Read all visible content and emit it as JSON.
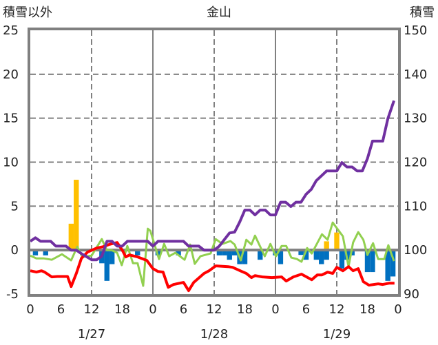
{
  "chart_data": {
    "type": "bar+line",
    "title": "金山",
    "ylabel_left": "積雪以外",
    "ylabel_right": "積雪",
    "ylim_left": [
      -5,
      25
    ],
    "ylim_right": [
      90,
      150
    ],
    "yticks_left": [
      "25",
      "20",
      "15",
      "10",
      "5",
      "0",
      "-5"
    ],
    "yticks_right": [
      "150",
      "140",
      "130",
      "120",
      "110",
      "100",
      "90"
    ],
    "xlim_hours": [
      0,
      72
    ],
    "xtick_labels": [
      "0",
      "6",
      "12",
      "18",
      "0",
      "6",
      "12",
      "18",
      "0",
      "6",
      "12",
      "18",
      "0"
    ],
    "date_labels": [
      "1/27",
      "1/28",
      "1/29"
    ],
    "grid": "dashed horizontal at 5,10,15,20; dashed vertical at 12h; solid at day boundaries",
    "colors": {
      "purple": "#7030A0",
      "red": "#FF0000",
      "green": "#92D050",
      "blue": "#0070C0",
      "yellow": "#FFC000",
      "axis": "#808080"
    },
    "series": [
      {
        "name": "snow_depth",
        "axis": "right",
        "kind": "line",
        "color": "#7030A0",
        "points": [
          [
            0,
            102
          ],
          [
            1,
            102.8
          ],
          [
            2,
            102
          ],
          [
            4,
            102
          ],
          [
            5,
            100.9
          ],
          [
            7,
            100.9
          ],
          [
            8,
            100
          ],
          [
            9,
            100
          ],
          [
            10,
            99.2
          ],
          [
            12,
            97.8
          ],
          [
            13,
            97.8
          ],
          [
            14,
            98.6
          ],
          [
            15,
            102
          ],
          [
            16,
            102
          ],
          [
            17,
            100.9
          ],
          [
            18,
            100.9
          ],
          [
            19,
            102
          ],
          [
            23,
            102
          ],
          [
            24,
            100.9
          ],
          [
            25,
            102
          ],
          [
            30,
            102
          ],
          [
            31,
            100.9
          ],
          [
            33,
            100.9
          ],
          [
            34,
            100
          ],
          [
            36,
            100
          ],
          [
            37,
            100.9
          ],
          [
            39,
            103.9
          ],
          [
            40,
            104.1
          ],
          [
            41,
            106.4
          ],
          [
            42,
            109.1
          ],
          [
            43,
            109.1
          ],
          [
            44,
            108
          ],
          [
            45,
            109.1
          ],
          [
            46,
            109.1
          ],
          [
            47,
            108
          ],
          [
            48,
            108
          ],
          [
            49,
            110.9
          ],
          [
            50,
            110.9
          ],
          [
            51,
            109.9
          ],
          [
            52,
            110.9
          ],
          [
            53,
            110.9
          ],
          [
            54,
            112.7
          ],
          [
            55,
            113.8
          ],
          [
            56,
            115.8
          ],
          [
            57,
            116.9
          ],
          [
            58,
            118
          ],
          [
            60,
            118
          ],
          [
            61,
            119.9
          ],
          [
            62,
            118.9
          ],
          [
            63,
            118.9
          ],
          [
            64,
            118
          ],
          [
            65,
            118
          ],
          [
            66,
            120.8
          ],
          [
            67,
            124.8
          ],
          [
            69,
            124.8
          ],
          [
            70,
            129.9
          ],
          [
            71.2,
            134
          ]
        ]
      },
      {
        "name": "red_series",
        "axis": "left",
        "kind": "line",
        "color": "#FF0000",
        "points": [
          [
            0,
            -2.35
          ],
          [
            1.2,
            -2.5
          ],
          [
            2.2,
            -2.35
          ],
          [
            2.8,
            -2.5
          ],
          [
            4.2,
            -3.05
          ],
          [
            5.3,
            -3.0
          ],
          [
            7.3,
            -3.0
          ],
          [
            8,
            -4.15
          ],
          [
            9,
            -2.66
          ],
          [
            10,
            -0.94
          ],
          [
            11.2,
            -0.23
          ],
          [
            13,
            0.23
          ],
          [
            14.3,
            0.39
          ],
          [
            15.4,
            0.63
          ],
          [
            17,
            0.86
          ],
          [
            18,
            0
          ],
          [
            18.7,
            -0.78
          ],
          [
            19.4,
            -0.55
          ],
          [
            21,
            -0.78
          ],
          [
            22.8,
            -1.17
          ],
          [
            24,
            -2.1
          ],
          [
            25,
            -2.43
          ],
          [
            26,
            -2.5
          ],
          [
            27,
            -4.23
          ],
          [
            28,
            -3.92
          ],
          [
            30,
            -3.68
          ],
          [
            31,
            -4.62
          ],
          [
            32,
            -3.68
          ],
          [
            34,
            -2.66
          ],
          [
            35,
            -2.35
          ],
          [
            36.3,
            -1.8
          ],
          [
            38.7,
            -1.88
          ],
          [
            39.6,
            -1.96
          ],
          [
            41.4,
            -2.43
          ],
          [
            42.3,
            -2.66
          ],
          [
            43.3,
            -3.13
          ],
          [
            44,
            -2.9
          ],
          [
            45.4,
            -3.05
          ],
          [
            47.3,
            -3.13
          ],
          [
            49.2,
            -3.05
          ],
          [
            50.1,
            -3.52
          ],
          [
            51.5,
            -3.05
          ],
          [
            53.1,
            -2.74
          ],
          [
            55.1,
            -3.37
          ],
          [
            56.2,
            -2.82
          ],
          [
            57.1,
            -2.82
          ],
          [
            58.2,
            -2.51
          ],
          [
            59.2,
            -2.66
          ],
          [
            60,
            -1.96
          ],
          [
            61.2,
            -2.35
          ],
          [
            62.3,
            -1.88
          ],
          [
            63.2,
            -2.35
          ],
          [
            64.2,
            -2.11
          ],
          [
            65.2,
            -3.6
          ],
          [
            66.3,
            -3.99
          ],
          [
            68.1,
            -3.84
          ],
          [
            69,
            -3.91
          ],
          [
            70.3,
            -3.76
          ],
          [
            71.3,
            -3.76
          ]
        ]
      },
      {
        "name": "green_series",
        "axis": "left",
        "kind": "line",
        "color": "#92D050",
        "points": [
          [
            0,
            -0.63
          ],
          [
            1.2,
            -0.94
          ],
          [
            2.6,
            -0.94
          ],
          [
            4.2,
            -1.1
          ],
          [
            6.2,
            -0.47
          ],
          [
            8,
            -1.17
          ],
          [
            9.2,
            0.39
          ],
          [
            10.2,
            -0.78
          ],
          [
            12,
            -0.63
          ],
          [
            14,
            1.25
          ],
          [
            15,
            0
          ],
          [
            15.9,
            0
          ],
          [
            17,
            -0.31
          ],
          [
            17.9,
            -1.72
          ],
          [
            19,
            0.47
          ],
          [
            20.1,
            -1.49
          ],
          [
            21,
            -1.49
          ],
          [
            22.1,
            -4.07
          ],
          [
            23,
            2.43
          ],
          [
            23.5,
            2.19
          ],
          [
            25.2,
            -1.02
          ],
          [
            26.2,
            0.7
          ],
          [
            27.2,
            -0.7
          ],
          [
            28.4,
            -0.31
          ],
          [
            30.2,
            -1.1
          ],
          [
            31.3,
            0.63
          ],
          [
            32.2,
            -1.57
          ],
          [
            33.3,
            -0.7
          ],
          [
            35.3,
            -0.39
          ],
          [
            36.3,
            1.25
          ],
          [
            37.6,
            0.7
          ],
          [
            39.2,
            1.02
          ],
          [
            40,
            0.63
          ],
          [
            41.2,
            -1.17
          ],
          [
            42.3,
            1.17
          ],
          [
            43.3,
            0.63
          ],
          [
            44,
            1.64
          ],
          [
            45.9,
            -0.7
          ],
          [
            47,
            0.7
          ],
          [
            48.1,
            -0.7
          ],
          [
            49.2,
            0.47
          ],
          [
            50.1,
            0.47
          ],
          [
            51.1,
            -0.86
          ],
          [
            52.2,
            -1.02
          ],
          [
            53.1,
            -1.33
          ],
          [
            54.2,
            0.23
          ],
          [
            55.1,
            -0.39
          ],
          [
            57.1,
            1.8
          ],
          [
            58.2,
            1.17
          ],
          [
            59.2,
            3.13
          ],
          [
            61.2,
            1.57
          ],
          [
            62.3,
            -1.88
          ],
          [
            63.2,
            0.86
          ],
          [
            64.2,
            2.04
          ],
          [
            65.2,
            1.17
          ],
          [
            66,
            -0.55
          ],
          [
            67.1,
            0.78
          ],
          [
            68.1,
            -1.02
          ],
          [
            69.3,
            -1.02
          ],
          [
            70.1,
            0.55
          ],
          [
            71.2,
            -1.25
          ]
        ]
      },
      {
        "name": "yellow_bars",
        "axis": "left",
        "kind": "bar",
        "color": "#FFC000",
        "points": [
          [
            8,
            3
          ],
          [
            9,
            8
          ],
          [
            58,
            1
          ],
          [
            60,
            2
          ]
        ]
      },
      {
        "name": "blue_bars",
        "axis": "left",
        "kind": "bar",
        "color": "#0070C0",
        "points": [
          [
            1,
            -0.6
          ],
          [
            3,
            -0.6
          ],
          [
            14,
            -1.5
          ],
          [
            15,
            -3.5
          ],
          [
            16,
            -1.6
          ],
          [
            21,
            -0.6
          ],
          [
            25,
            -0.6
          ],
          [
            29,
            -0.6
          ],
          [
            37,
            -0.6
          ],
          [
            38,
            -0.6
          ],
          [
            39,
            -1.1
          ],
          [
            40,
            -0.6
          ],
          [
            41,
            -1.6
          ],
          [
            42,
            -1.6
          ],
          [
            45,
            -1.1
          ],
          [
            48,
            -0.6
          ],
          [
            49,
            -1.6
          ],
          [
            53,
            -0.55
          ],
          [
            54,
            -1.1
          ],
          [
            56,
            -1.1
          ],
          [
            57,
            -1.6
          ],
          [
            58,
            -1.1
          ],
          [
            61,
            -2.1
          ],
          [
            62,
            -1.1
          ],
          [
            63,
            -0.6
          ],
          [
            66,
            -2.5
          ],
          [
            67,
            -2.5
          ],
          [
            70,
            -3.5
          ],
          [
            71,
            -3.0
          ]
        ]
      }
    ]
  }
}
